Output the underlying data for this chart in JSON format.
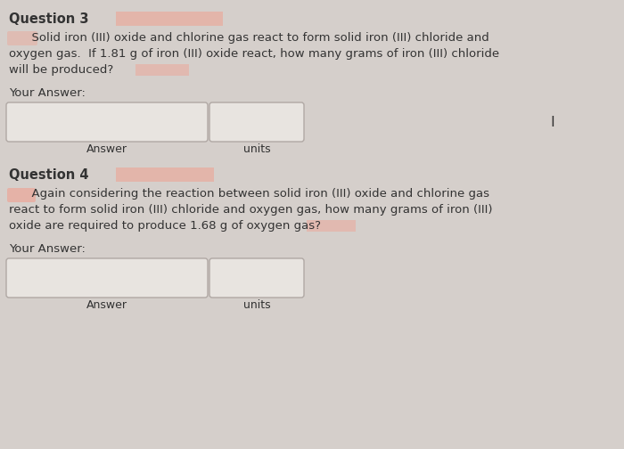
{
  "bg_color": "#d5cfcb",
  "title_fontsize": 10.5,
  "body_fontsize": 9.5,
  "label_fontsize": 9,
  "q3_title": "Question 3",
  "q3_highlight_title": "#e8a898",
  "q3_body_line1": "      Solid iron (III) oxide and chlorine gas react to form solid iron (III) chloride and",
  "q3_body_line2": "oxygen gas.  If 1.81 g of iron (III) oxide react, how many grams of iron (III) chloride",
  "q3_body_line3": "will be produced?",
  "q3_your_answer": "Your Answer:",
  "q3_answer_label": "Answer",
  "q3_units_label": "units",
  "q4_title": "Question 4",
  "q4_highlight_title": "#e8a898",
  "q4_body_line1": "      Again considering the reaction between solid iron (III) oxide and chlorine gas",
  "q4_body_line2": "react to form solid iron (III) chloride and oxygen gas, how many grams of iron (III)",
  "q4_body_line3": "oxide are required to produce 1.68 g of oxygen gas?",
  "q4_your_answer": "Your Answer:",
  "q4_answer_label": "Answer",
  "q4_units_label": "units",
  "cursor_symbol": "I",
  "box_color": "#e8e4e0",
  "box_edge_color": "#b0a8a4",
  "text_color": "#333333",
  "highlight_pink": "#f0a090"
}
